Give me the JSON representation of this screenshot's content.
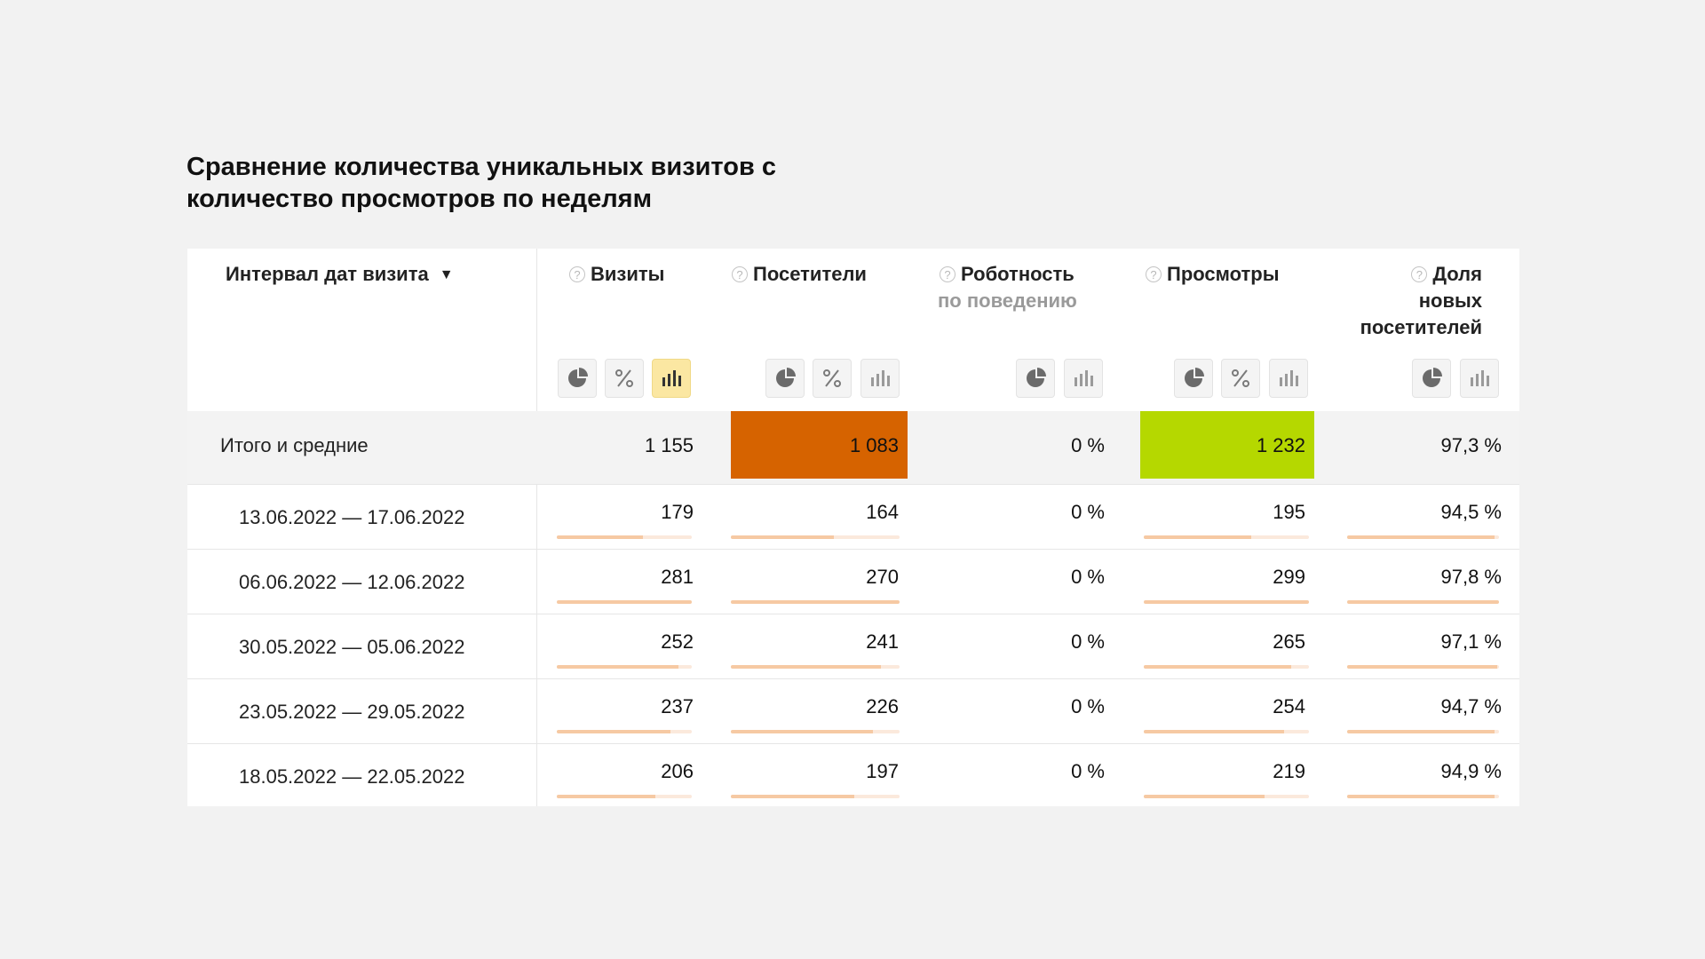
{
  "title": "Сравнение количества уникальных визитов с количество просмотров по неделям",
  "table": {
    "date_header": "Интервал дат визита",
    "columns": [
      {
        "label": "Визиты",
        "sub": ""
      },
      {
        "label": "Посетители",
        "sub": ""
      },
      {
        "label": "Роботность",
        "sub": "по поведению"
      },
      {
        "label": "Просмотры",
        "sub": ""
      },
      {
        "label": "Доля",
        "sub": "новых",
        "sub2": "посетителей"
      }
    ],
    "icons": {
      "sort": "▼",
      "help": "?",
      "pie": "pie-chart-icon",
      "percent": "percent-icon",
      "bars": "bar-chart-icon"
    },
    "colors": {
      "visitors_total_highlight": "#d66300",
      "views_total_highlight": "#b5d800",
      "active_toggle": "#fbe7a2"
    },
    "total": {
      "label": "Итого и средние",
      "visits": "1 155",
      "visitors": "1 083",
      "robot": "0 %",
      "views": "1 232",
      "new_share": "97,3 %"
    },
    "rows": [
      {
        "date": "13.06.2022 — 17.06.2022",
        "visits": "179",
        "visitors": "164",
        "robot": "0 %",
        "views": "195",
        "new_share": "94,5 %"
      },
      {
        "date": "06.06.2022 — 12.06.2022",
        "visits": "281",
        "visitors": "270",
        "robot": "0 %",
        "views": "299",
        "new_share": "97,8 %"
      },
      {
        "date": "30.05.2022 — 05.06.2022",
        "visits": "252",
        "visitors": "241",
        "robot": "0 %",
        "views": "265",
        "new_share": "97,1 %"
      },
      {
        "date": "23.05.2022 — 29.05.2022",
        "visits": "237",
        "visitors": "226",
        "robot": "0 %",
        "views": "254",
        "new_share": "94,7 %"
      },
      {
        "date": "18.05.2022 — 22.05.2022",
        "visits": "206",
        "visitors": "197",
        "robot": "0 %",
        "views": "219",
        "new_share": "94,9 %"
      }
    ]
  }
}
